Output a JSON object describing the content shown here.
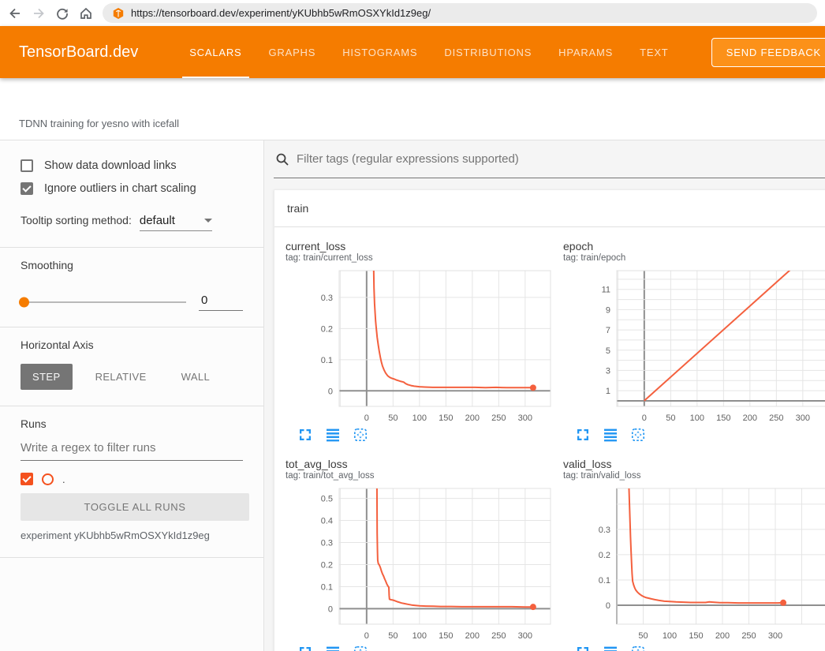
{
  "browser": {
    "url": "https://tensorboard.dev/experiment/yKUbhb5wRmOSXYkId1z9eg/",
    "icons": [
      "back-arrow",
      "forward-arrow",
      "refresh",
      "home",
      "tensorboard-logo"
    ]
  },
  "header": {
    "brand": "TensorBoard.dev",
    "tabs": [
      {
        "label": "SCALARS",
        "active": true
      },
      {
        "label": "GRAPHS",
        "active": false
      },
      {
        "label": "HISTOGRAMS",
        "active": false
      },
      {
        "label": "DISTRIBUTIONS",
        "active": false
      },
      {
        "label": "HPARAMS",
        "active": false
      },
      {
        "label": "TEXT",
        "active": false
      }
    ],
    "feedback_button": "SEND FEEDBACK",
    "accent_color": "#f57c00"
  },
  "experiment_bar": {
    "title": "TDNN training for yesno with icefall"
  },
  "sidebar": {
    "show_download_links": {
      "label": "Show data download links",
      "checked": false
    },
    "ignore_outliers": {
      "label": "Ignore outliers in chart scaling",
      "checked": true
    },
    "tooltip_sorting": {
      "label": "Tooltip sorting method:",
      "value": "default"
    },
    "smoothing": {
      "label": "Smoothing",
      "value": "0"
    },
    "horizontal_axis": {
      "label": "Horizontal Axis",
      "options": [
        "STEP",
        "RELATIVE",
        "WALL"
      ],
      "selected": "STEP"
    },
    "runs": {
      "label": "Runs",
      "filter_placeholder": "Write a regex to filter runs",
      "items": [
        {
          "name": ".",
          "checked": true,
          "color": "#f4511e"
        }
      ],
      "toggle_button": "TOGGLE ALL RUNS",
      "experiment_note": "experiment yKUbhb5wRmOSXYkId1z9eg"
    }
  },
  "main": {
    "filter_placeholder": "Filter tags (regular expressions supported)",
    "section_title": "train",
    "chart_controls": [
      "maximize-icon",
      "flatten-lines-icon",
      "fit-domain-icon"
    ],
    "control_color": "#2196f3"
  },
  "chart_data": [
    {
      "type": "line",
      "name": "current_loss",
      "tag_line": "tag: train/current_loss",
      "run": ".",
      "color": "#f4603e",
      "end_dot": true,
      "xlim": [
        -52,
        348
      ],
      "ylim": [
        -0.05,
        0.386
      ],
      "x_grid": [
        -50,
        0,
        50,
        100,
        150,
        200,
        250,
        300
      ],
      "x_ticks": [
        {
          "v": 0,
          "label": "0"
        },
        {
          "v": 50,
          "label": "50"
        },
        {
          "v": 100,
          "label": "100"
        },
        {
          "v": 150,
          "label": "150"
        },
        {
          "v": 200,
          "label": "200"
        },
        {
          "v": 250,
          "label": "250"
        },
        {
          "v": 300,
          "label": "300"
        }
      ],
      "y_grid": [
        0,
        0.1,
        0.2,
        0.3
      ],
      "y_ticks": [
        {
          "v": 0,
          "label": "0"
        },
        {
          "v": 0.1,
          "label": "0.1"
        },
        {
          "v": 0.2,
          "label": "0.2"
        },
        {
          "v": 0.3,
          "label": "0.3"
        }
      ],
      "points": [
        [
          13,
          0.42
        ],
        [
          14,
          0.33
        ],
        [
          15,
          0.28
        ],
        [
          16,
          0.25
        ],
        [
          17,
          0.225
        ],
        [
          18,
          0.205
        ],
        [
          19,
          0.188
        ],
        [
          20,
          0.172
        ],
        [
          22,
          0.147
        ],
        [
          24,
          0.126
        ],
        [
          26,
          0.107
        ],
        [
          28,
          0.092
        ],
        [
          30,
          0.08
        ],
        [
          33,
          0.067
        ],
        [
          36,
          0.057
        ],
        [
          40,
          0.048
        ],
        [
          44,
          0.043
        ],
        [
          48,
          0.04
        ],
        [
          52,
          0.038
        ],
        [
          56,
          0.035
        ],
        [
          60,
          0.033
        ],
        [
          65,
          0.03
        ],
        [
          70,
          0.028
        ],
        [
          74,
          0.023
        ],
        [
          78,
          0.02
        ],
        [
          84,
          0.017
        ],
        [
          90,
          0.015
        ],
        [
          100,
          0.013
        ],
        [
          110,
          0.012
        ],
        [
          125,
          0.011
        ],
        [
          145,
          0.011
        ],
        [
          165,
          0.011
        ],
        [
          185,
          0.011
        ],
        [
          205,
          0.011
        ],
        [
          225,
          0.01
        ],
        [
          245,
          0.011
        ],
        [
          265,
          0.01
        ],
        [
          285,
          0.01
        ],
        [
          305,
          0.01
        ],
        [
          315,
          0.01
        ]
      ]
    },
    {
      "type": "line",
      "name": "epoch",
      "tag_line": "tag: train/epoch",
      "run": ".",
      "color": "#f4603e",
      "end_dot": false,
      "xlim": [
        -52,
        348
      ],
      "ylim": [
        -0.55,
        12.85
      ],
      "x_grid": [
        -50,
        0,
        50,
        100,
        150,
        200,
        250,
        300
      ],
      "x_ticks": [
        {
          "v": 0,
          "label": "0"
        },
        {
          "v": 50,
          "label": "50"
        },
        {
          "v": 100,
          "label": "100"
        },
        {
          "v": 150,
          "label": "150"
        },
        {
          "v": 200,
          "label": "200"
        },
        {
          "v": 250,
          "label": "250"
        },
        {
          "v": 300,
          "label": "300"
        }
      ],
      "y_grid": [
        0,
        1,
        2,
        3,
        4,
        5,
        6,
        7,
        8,
        9,
        10,
        11,
        12
      ],
      "y_ticks": [
        {
          "v": 1,
          "label": "1"
        },
        {
          "v": 3,
          "label": "3"
        },
        {
          "v": 5,
          "label": "5"
        },
        {
          "v": 7,
          "label": "7"
        },
        {
          "v": 9,
          "label": "9"
        },
        {
          "v": 11,
          "label": "11"
        }
      ],
      "points": [
        [
          0,
          0
        ],
        [
          280,
          13.1
        ]
      ]
    },
    {
      "type": "line",
      "name": "tot_avg_loss",
      "tag_line": "tag: train/tot_avg_loss",
      "run": ".",
      "color": "#f4603e",
      "end_dot": true,
      "xlim": [
        -52,
        348
      ],
      "ylim": [
        -0.07,
        0.545
      ],
      "x_grid": [
        -50,
        0,
        50,
        100,
        150,
        200,
        250,
        300
      ],
      "x_ticks": [
        {
          "v": 0,
          "label": "0"
        },
        {
          "v": 50,
          "label": "50"
        },
        {
          "v": 100,
          "label": "100"
        },
        {
          "v": 150,
          "label": "150"
        },
        {
          "v": 200,
          "label": "200"
        },
        {
          "v": 250,
          "label": "250"
        },
        {
          "v": 300,
          "label": "300"
        }
      ],
      "y_grid": [
        0,
        0.1,
        0.2,
        0.3,
        0.4,
        0.5
      ],
      "y_ticks": [
        {
          "v": 0,
          "label": "0"
        },
        {
          "v": 0.1,
          "label": "0.1"
        },
        {
          "v": 0.2,
          "label": "0.2"
        },
        {
          "v": 0.3,
          "label": "0.3"
        },
        {
          "v": 0.4,
          "label": "0.4"
        },
        {
          "v": 0.5,
          "label": "0.5"
        }
      ],
      "points": [
        [
          19.5,
          0.56
        ],
        [
          20,
          0.34
        ],
        [
          20.5,
          0.26
        ],
        [
          21,
          0.22
        ],
        [
          22,
          0.205
        ],
        [
          24,
          0.198
        ],
        [
          26,
          0.186
        ],
        [
          28,
          0.171
        ],
        [
          30,
          0.158
        ],
        [
          32,
          0.148
        ],
        [
          34,
          0.136
        ],
        [
          36,
          0.125
        ],
        [
          38,
          0.113
        ],
        [
          40,
          0.104
        ],
        [
          42,
          0.097
        ],
        [
          42.6,
          0.06
        ],
        [
          43.2,
          0.043
        ],
        [
          46,
          0.041
        ],
        [
          50,
          0.039
        ],
        [
          54,
          0.036
        ],
        [
          58,
          0.032
        ],
        [
          62,
          0.029
        ],
        [
          66,
          0.026
        ],
        [
          72,
          0.023
        ],
        [
          78,
          0.02
        ],
        [
          85,
          0.017
        ],
        [
          92,
          0.015
        ],
        [
          100,
          0.013
        ],
        [
          112,
          0.012
        ],
        [
          126,
          0.011
        ],
        [
          140,
          0.01
        ],
        [
          160,
          0.01
        ],
        [
          180,
          0.009
        ],
        [
          200,
          0.009
        ],
        [
          225,
          0.009
        ],
        [
          250,
          0.009
        ],
        [
          275,
          0.009
        ],
        [
          300,
          0.008
        ],
        [
          315,
          0.008
        ]
      ]
    },
    {
      "type": "line",
      "name": "valid_loss",
      "tag_line": "tag: train/valid_loss",
      "run": ".",
      "color": "#f4603e",
      "end_dot": true,
      "xlim": [
        0,
        400
      ],
      "ylim": [
        -0.075,
        0.462
      ],
      "x_grid": [
        0,
        50,
        100,
        150,
        200,
        250,
        300,
        350,
        400
      ],
      "x_ticks": [
        {
          "v": 50,
          "label": "50"
        },
        {
          "v": 100,
          "label": "100"
        },
        {
          "v": 150,
          "label": "150"
        },
        {
          "v": 200,
          "label": "200"
        },
        {
          "v": 250,
          "label": "250"
        },
        {
          "v": 300,
          "label": "300"
        }
      ],
      "y_grid": [
        0,
        0.1,
        0.2,
        0.3,
        0.4
      ],
      "y_ticks": [
        {
          "v": 0,
          "label": "0"
        },
        {
          "v": 0.1,
          "label": "0.1"
        },
        {
          "v": 0.2,
          "label": "0.2"
        },
        {
          "v": 0.3,
          "label": "0.3"
        }
      ],
      "points": [
        [
          23,
          0.47
        ],
        [
          24,
          0.4
        ],
        [
          25,
          0.33
        ],
        [
          26,
          0.27
        ],
        [
          27,
          0.215
        ],
        [
          28,
          0.165
        ],
        [
          29,
          0.125
        ],
        [
          30,
          0.095
        ],
        [
          32,
          0.08
        ],
        [
          34,
          0.068
        ],
        [
          36,
          0.06
        ],
        [
          39,
          0.052
        ],
        [
          42,
          0.046
        ],
        [
          45,
          0.041
        ],
        [
          48,
          0.037
        ],
        [
          52,
          0.033
        ],
        [
          56,
          0.03
        ],
        [
          60,
          0.028
        ],
        [
          66,
          0.025
        ],
        [
          72,
          0.022
        ],
        [
          80,
          0.019
        ],
        [
          90,
          0.016
        ],
        [
          100,
          0.015
        ],
        [
          112,
          0.013
        ],
        [
          126,
          0.012
        ],
        [
          140,
          0.011
        ],
        [
          155,
          0.011
        ],
        [
          168,
          0.011
        ],
        [
          175,
          0.013
        ],
        [
          182,
          0.012
        ],
        [
          195,
          0.01
        ],
        [
          210,
          0.01
        ],
        [
          230,
          0.009
        ],
        [
          250,
          0.009
        ],
        [
          270,
          0.009
        ],
        [
          290,
          0.009
        ],
        [
          305,
          0.009
        ],
        [
          315,
          0.01
        ]
      ]
    }
  ]
}
